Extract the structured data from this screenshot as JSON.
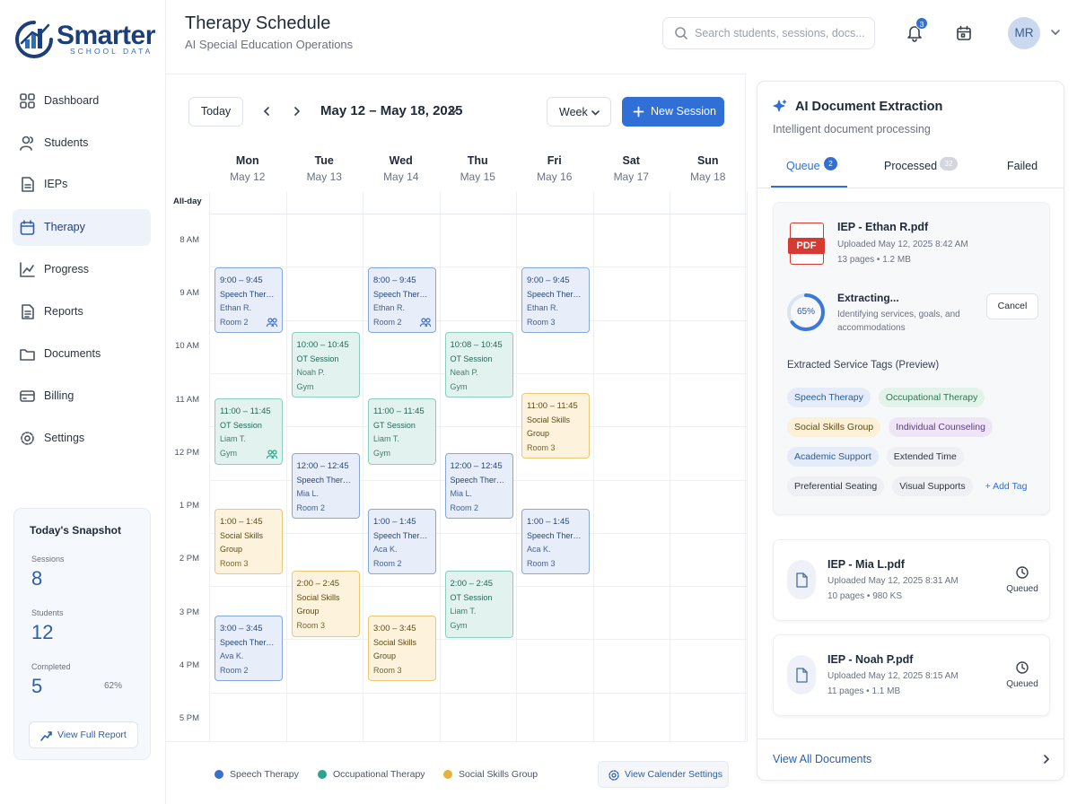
{
  "sidebar": {
    "logo": {
      "brand": "Smarter",
      "tagline": "SCHOOL DATA"
    },
    "nav": [
      "Dashboard",
      "Students",
      "IEPs",
      "Therapy",
      "Progress",
      "Reports",
      "Documents",
      "Billing",
      "Settings"
    ],
    "snapshot": {
      "title": "Today's Snapshot",
      "stats": [
        {
          "label": "Sessions",
          "value": "8"
        },
        {
          "label": "Students",
          "value": "12"
        },
        {
          "label": "Completed",
          "value": "5",
          "extra": "62%"
        }
      ],
      "button": "View Full Report"
    }
  },
  "header": {
    "title": "Therapy Schedule",
    "subtitle": "AI Special Education Operations",
    "search_placeholder": "Search students, sessions, docs...",
    "notifications": "3",
    "avatar": "MR"
  },
  "calendar": {
    "today": "Today",
    "range": "May 12 – May 18, 2025",
    "view": "Week",
    "new_session": "New Session",
    "days": [
      {
        "name": "Mon",
        "date": "May 12"
      },
      {
        "name": "Tue",
        "date": "May 13"
      },
      {
        "name": "Wed",
        "date": "May 14"
      },
      {
        "name": "Thu",
        "date": "May 15"
      },
      {
        "name": "Fri",
        "date": "May 16"
      },
      {
        "name": "Sat",
        "date": "May 17"
      },
      {
        "name": "Sun",
        "date": "May 18"
      }
    ],
    "all_day": "All-day",
    "hours": [
      "8 AM",
      "9 AM",
      "10 AM",
      "11 AM",
      "12 PM",
      "1 PM",
      "2 PM",
      "3 PM",
      "4 PM",
      "5 PM"
    ],
    "events": [
      {
        "time": "9:00 – 9:45",
        "title": "Speech Therapy",
        "who": "Ethan R.",
        "room": "Room 2"
      },
      {
        "time": "11:00 – 11:45",
        "title": "OT Session",
        "who": "Liam T.",
        "room": "Gym"
      },
      {
        "time": "1:00 – 1:45",
        "title": "Social Skills Group",
        "room": "Room 3"
      },
      {
        "time": "3:00 – 3:45",
        "title": "Speech Therapy",
        "who": "Ava K.",
        "room": "Room 2"
      },
      {
        "time": "10:00 – 10:45",
        "title": "OT Session",
        "who": "Noah P.",
        "room": "Gym"
      },
      {
        "time": "12:00 – 12:45",
        "title": "Speech Therapy",
        "who": "Mia L.",
        "room": "Room 2"
      },
      {
        "time": "2:00 – 2:45",
        "title": "Social Skills Group",
        "room": "Room 3"
      },
      {
        "time": "8:00 – 9:45",
        "title": "Speech Therapy",
        "who": "Ethan R.",
        "room": "Room 2"
      },
      {
        "time": "11:00 – 11:45",
        "title": "GT Session",
        "who": "Liam T.",
        "room": "Gym"
      },
      {
        "time": "1:00 – 1:45",
        "title": "Speech Therapy",
        "who": "Aca K.",
        "room": "Room 2"
      },
      {
        "time": "3:00 – 3:45",
        "title": "Social Skills Group",
        "room": "Room 3"
      },
      {
        "time": "10:08 – 10:45",
        "title": "OT Session",
        "who": "Neah P.",
        "room": "Gym"
      },
      {
        "time": "12:00 – 12:45",
        "title": "Speech Therapy",
        "who": "Mia L.",
        "room": "Room 2"
      },
      {
        "time": "2:00 – 2:45",
        "title": "OT Session",
        "who": "Liam T.",
        "room": "Gym"
      },
      {
        "time": "9:00 – 9:45",
        "title": "Speech Therapy",
        "who": "Ethan R.",
        "room": "Room 3"
      },
      {
        "time": "11:00 – 11:45",
        "title": "Social Skills Group",
        "room": "Room 3"
      },
      {
        "time": "1:00 – 1:45",
        "title": "Speech Therapy",
        "who": "Aca K.",
        "room": "Room 3"
      }
    ],
    "legend": [
      "Speech Therapy",
      "Occupational Therapy",
      "Social Skills Group"
    ],
    "settings": "View Calender Settings"
  },
  "docs": {
    "title": "AI Document Extraction",
    "subtitle": "Intelligent document processing",
    "tabs": [
      {
        "label": "Queue",
        "count": "2"
      },
      {
        "label": "Processed",
        "count": "32"
      },
      {
        "label": "Failed"
      }
    ],
    "current": {
      "icon": "PDF",
      "name": "IEP - Ethan R.pdf",
      "uploaded": "Uploaded May 12, 2025 8:42 AM",
      "meta": "13 pages • 1.2 MB",
      "progress": {
        "value": 65,
        "label": "65%"
      },
      "status": "Extracting...",
      "detail": "Identifying services, goals, and accommodations",
      "cancel": "Cancel",
      "tags_title": "Extracted Service Tags (Preview)",
      "tags": [
        "Speech Therapy",
        "Occupational Therapy",
        "Social Skills Group",
        "Individual Counseling",
        "Academic Support",
        "Extended Time",
        "Preferential Seating",
        "Visual Supports"
      ],
      "add_tag": "+ Add Tag"
    },
    "queue": [
      {
        "name": "IEP - Mia L.pdf",
        "uploaded": "Uploaded May 12, 2025 8:31 AM",
        "meta": "10 pages • 980 KS",
        "status": "Queued"
      },
      {
        "name": "IEP - Noah P.pdf",
        "uploaded": "Uploaded May 12, 2025 8:15 AM",
        "meta": "11 pages • 1.1 MB",
        "status": "Queued"
      }
    ],
    "footer": "View All Documents"
  }
}
